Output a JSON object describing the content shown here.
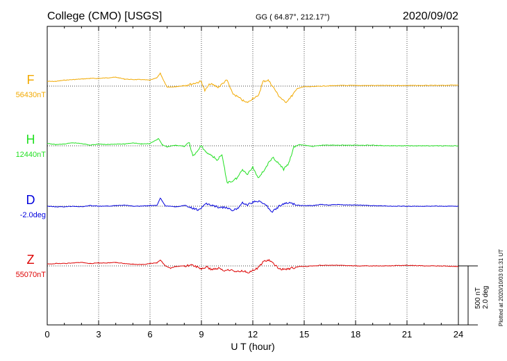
{
  "header": {
    "station": "College (CMO)  [USGS]",
    "coords": "GG ( 64.87°, 212.17°)",
    "date": "2020/09/02"
  },
  "footer": {
    "plotted": "Plotted at 2020/10/03 01:31 UT"
  },
  "scale": {
    "nt": "500 nT",
    "deg": "2.0 deg"
  },
  "chart_data": {
    "type": "line",
    "xlabel": "U T (hour)",
    "xlim": [
      0,
      24
    ],
    "x_ticks": [
      0,
      3,
      6,
      9,
      12,
      15,
      18,
      21,
      24
    ],
    "x_tick_labels": [
      "0",
      "3",
      "6",
      "9",
      "12",
      "15",
      "18",
      "21",
      "24"
    ],
    "grid": true,
    "scale_units": "nT per 500",
    "series": [
      {
        "name": "F",
        "baseline_label": "56430nT",
        "color": "#f2a900",
        "base": 0.0,
        "points": [
          [
            0,
            -40
          ],
          [
            0.5,
            -40
          ],
          [
            1.0,
            -50
          ],
          [
            1.5,
            -55
          ],
          [
            2.0,
            -60
          ],
          [
            2.5,
            -65
          ],
          [
            3.0,
            -65
          ],
          [
            3.5,
            -70
          ],
          [
            4.0,
            -75
          ],
          [
            4.5,
            -60
          ],
          [
            5.0,
            -55
          ],
          [
            5.5,
            -55
          ],
          [
            6.0,
            -50
          ],
          [
            6.4,
            -70
          ],
          [
            6.6,
            -110
          ],
          [
            6.8,
            -45
          ],
          [
            7.0,
            10
          ],
          [
            7.5,
            5
          ],
          [
            8.0,
            -5
          ],
          [
            8.5,
            -20
          ],
          [
            9.0,
            -40
          ],
          [
            9.2,
            40
          ],
          [
            9.5,
            -20
          ],
          [
            10.0,
            10
          ],
          [
            10.3,
            -30
          ],
          [
            10.5,
            -50
          ],
          [
            10.8,
            60
          ],
          [
            11.0,
            80
          ],
          [
            11.3,
            110
          ],
          [
            11.6,
            140
          ],
          [
            11.8,
            130
          ],
          [
            12.0,
            100
          ],
          [
            12.3,
            90
          ],
          [
            12.6,
            -40
          ],
          [
            12.9,
            -50
          ],
          [
            13.2,
            10
          ],
          [
            13.5,
            80
          ],
          [
            13.9,
            140
          ],
          [
            14.3,
            80
          ],
          [
            14.6,
            20
          ],
          [
            15.0,
            5
          ],
          [
            15.5,
            5
          ],
          [
            16.0,
            0
          ],
          [
            17.0,
            -5
          ],
          [
            18.0,
            -5
          ],
          [
            19.0,
            -5
          ],
          [
            20.0,
            -5
          ],
          [
            21.0,
            -5
          ],
          [
            22.0,
            -5
          ],
          [
            23.0,
            -5
          ],
          [
            24.0,
            -10
          ]
        ]
      },
      {
        "name": "H",
        "baseline_label": "12440nT",
        "color": "#22e022",
        "base": 0.0,
        "points": [
          [
            0,
            -20
          ],
          [
            0.5,
            -10
          ],
          [
            1.0,
            -15
          ],
          [
            1.5,
            -25
          ],
          [
            2.0,
            -20
          ],
          [
            2.5,
            -5
          ],
          [
            3.0,
            -15
          ],
          [
            3.5,
            -10
          ],
          [
            4.0,
            -15
          ],
          [
            4.5,
            -15
          ],
          [
            5.0,
            -25
          ],
          [
            5.5,
            -15
          ],
          [
            6.0,
            -20
          ],
          [
            6.5,
            -60
          ],
          [
            6.7,
            -10
          ],
          [
            7.0,
            10
          ],
          [
            7.5,
            -5
          ],
          [
            8.0,
            5
          ],
          [
            8.3,
            -25
          ],
          [
            8.5,
            90
          ],
          [
            8.8,
            40
          ],
          [
            9.0,
            0
          ],
          [
            9.3,
            60
          ],
          [
            9.6,
            80
          ],
          [
            9.9,
            120
          ],
          [
            10.2,
            80
          ],
          [
            10.5,
            310
          ],
          [
            10.8,
            300
          ],
          [
            11.1,
            270
          ],
          [
            11.4,
            200
          ],
          [
            11.7,
            240
          ],
          [
            12.0,
            180
          ],
          [
            12.3,
            270
          ],
          [
            12.6,
            220
          ],
          [
            12.9,
            150
          ],
          [
            13.2,
            100
          ],
          [
            13.5,
            150
          ],
          [
            13.8,
            200
          ],
          [
            14.1,
            150
          ],
          [
            14.4,
            10
          ],
          [
            14.7,
            -10
          ],
          [
            15.0,
            -5
          ],
          [
            15.5,
            5
          ],
          [
            16.0,
            -5
          ],
          [
            16.5,
            -5
          ],
          [
            17.0,
            -5
          ],
          [
            18.0,
            -5
          ],
          [
            19.0,
            -5
          ],
          [
            20.0,
            0
          ],
          [
            21.0,
            0
          ],
          [
            22.0,
            0
          ],
          [
            23.0,
            0
          ],
          [
            24.0,
            0
          ]
        ]
      },
      {
        "name": "D",
        "baseline_label": "-2.0deg",
        "color": "#0000dd",
        "base": 0.0,
        "points": [
          [
            0,
            0
          ],
          [
            0.5,
            5
          ],
          [
            1.0,
            5
          ],
          [
            1.5,
            0
          ],
          [
            2.0,
            5
          ],
          [
            2.5,
            -5
          ],
          [
            3.0,
            0
          ],
          [
            3.5,
            0
          ],
          [
            4.0,
            -5
          ],
          [
            4.5,
            -10
          ],
          [
            5.0,
            0
          ],
          [
            5.5,
            0
          ],
          [
            6.0,
            -5
          ],
          [
            6.4,
            -5
          ],
          [
            6.6,
            -70
          ],
          [
            6.9,
            0
          ],
          [
            7.2,
            0
          ],
          [
            7.5,
            5
          ],
          [
            8.0,
            -5
          ],
          [
            8.5,
            20
          ],
          [
            8.8,
            30
          ],
          [
            9.0,
            15
          ],
          [
            9.3,
            -20
          ],
          [
            9.6,
            -10
          ],
          [
            9.9,
            5
          ],
          [
            10.2,
            10
          ],
          [
            10.5,
            15
          ],
          [
            10.8,
            40
          ],
          [
            11.1,
            20
          ],
          [
            11.4,
            -30
          ],
          [
            11.7,
            -10
          ],
          [
            12.0,
            -35
          ],
          [
            12.3,
            -40
          ],
          [
            12.6,
            -30
          ],
          [
            12.9,
            10
          ],
          [
            13.1,
            55
          ],
          [
            13.3,
            25
          ],
          [
            13.6,
            -5
          ],
          [
            13.9,
            -25
          ],
          [
            14.2,
            -30
          ],
          [
            14.5,
            -10
          ],
          [
            15.0,
            -5
          ],
          [
            15.5,
            -5
          ],
          [
            16.0,
            -15
          ],
          [
            16.5,
            -10
          ],
          [
            17.0,
            -15
          ],
          [
            17.5,
            -10
          ],
          [
            18.0,
            -10
          ],
          [
            19.0,
            -5
          ],
          [
            20.0,
            0
          ],
          [
            21.0,
            0
          ],
          [
            22.0,
            0
          ],
          [
            23.0,
            0
          ],
          [
            24.0,
            0
          ]
        ]
      },
      {
        "name": "Z",
        "baseline_label": "55070nT",
        "color": "#dd0000",
        "base": 0.0,
        "points": [
          [
            0,
            -15
          ],
          [
            0.5,
            -20
          ],
          [
            1.0,
            -20
          ],
          [
            1.5,
            -25
          ],
          [
            2.0,
            -30
          ],
          [
            2.5,
            -20
          ],
          [
            3.0,
            -25
          ],
          [
            3.5,
            -25
          ],
          [
            4.0,
            -30
          ],
          [
            4.5,
            -20
          ],
          [
            5.0,
            -15
          ],
          [
            5.5,
            -10
          ],
          [
            6.0,
            -20
          ],
          [
            6.4,
            -25
          ],
          [
            6.6,
            -50
          ],
          [
            6.9,
            0
          ],
          [
            7.2,
            20
          ],
          [
            7.5,
            5
          ],
          [
            8.0,
            0
          ],
          [
            8.5,
            -5
          ],
          [
            9.0,
            25
          ],
          [
            9.3,
            10
          ],
          [
            9.6,
            30
          ],
          [
            10.0,
            20
          ],
          [
            10.3,
            40
          ],
          [
            10.6,
            30
          ],
          [
            10.8,
            40
          ],
          [
            11.1,
            50
          ],
          [
            11.4,
            40
          ],
          [
            11.7,
            55
          ],
          [
            12.0,
            40
          ],
          [
            12.3,
            20
          ],
          [
            12.6,
            -35
          ],
          [
            12.9,
            -50
          ],
          [
            13.2,
            -20
          ],
          [
            13.5,
            20
          ],
          [
            13.8,
            30
          ],
          [
            14.1,
            25
          ],
          [
            14.4,
            15
          ],
          [
            14.7,
            5
          ],
          [
            15.0,
            5
          ],
          [
            15.5,
            0
          ],
          [
            16.0,
            -5
          ],
          [
            17.0,
            -5
          ],
          [
            18.0,
            0
          ],
          [
            19.0,
            0
          ],
          [
            20.0,
            0
          ],
          [
            21.0,
            -5
          ],
          [
            22.0,
            0
          ],
          [
            23.0,
            0
          ],
          [
            24.0,
            5
          ]
        ]
      }
    ]
  }
}
